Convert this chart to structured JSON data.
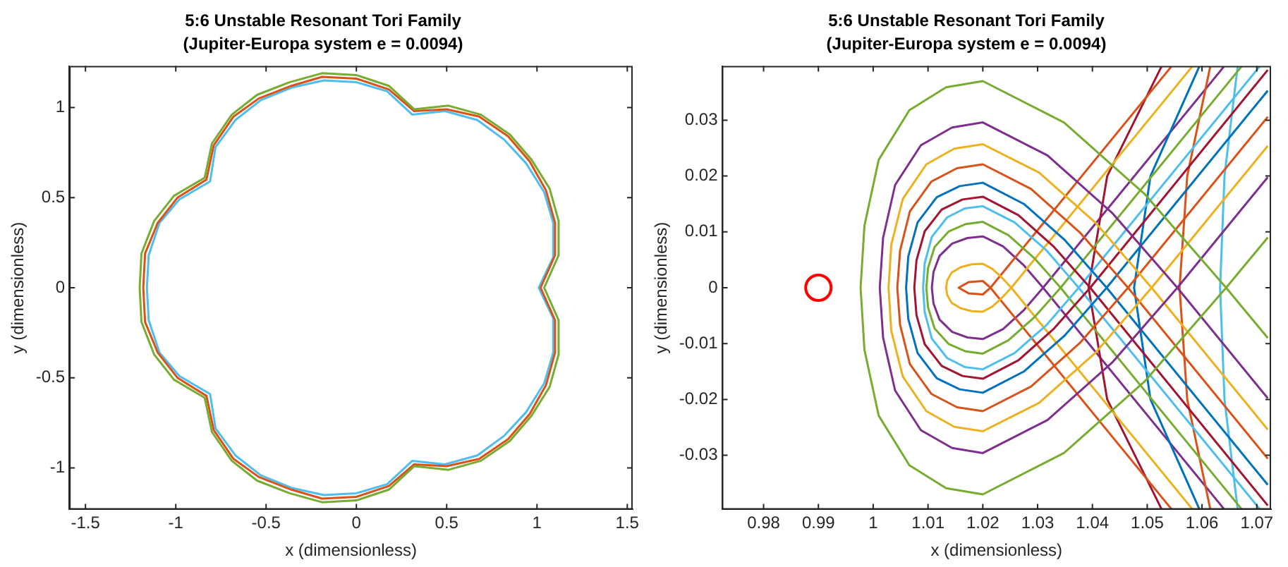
{
  "chart_data": [
    {
      "type": "line",
      "title": "5:6 Unstable Resonant Tori Family",
      "subtitle": "(Jupiter-Europa system e = 0.0094)",
      "xlabel": "x (dimensionless)",
      "ylabel": "y (dimensionless)",
      "xlim": [
        -1.59,
        1.53
      ],
      "ylim": [
        -1.23,
        1.23
      ],
      "xticks": [
        -1.5,
        -1,
        -0.5,
        0,
        0.5,
        1,
        1.5
      ],
      "yticks": [
        -1,
        -0.5,
        0,
        0.5,
        1
      ],
      "grid": false,
      "legend": false,
      "series": [
        {
          "color": "#77ac30",
          "x": [
            1.04,
            1.12,
            1.12,
            1.07,
            0.97,
            0.85,
            0.69,
            0.51,
            0.32,
            0.18,
            0,
            -0.19,
            -0.37,
            -0.55,
            -0.69,
            -0.8,
            -0.84,
            -1.01,
            -1.12,
            -1.19,
            -1.2,
            -1.19,
            -1.12,
            -1.01,
            -0.84,
            -0.8,
            -0.69,
            -0.55,
            -0.37,
            -0.19,
            0,
            0.18,
            0.32,
            0.51,
            0.69,
            0.85,
            0.97,
            1.07,
            1.12,
            1.12,
            1.04,
            1.08
          ],
          "values": [
            0,
            0.18,
            0.37,
            0.55,
            0.71,
            0.85,
            0.96,
            1.01,
            0.99,
            1.12,
            1.18,
            1.19,
            1.14,
            1.07,
            0.96,
            0.8,
            0.61,
            0.51,
            0.37,
            0.19,
            0,
            -0.19,
            -0.37,
            -0.51,
            -0.61,
            -0.8,
            -0.96,
            -1.07,
            -1.14,
            -1.19,
            -1.18,
            -1.12,
            -0.99,
            -1.01,
            -0.96,
            -0.85,
            -0.71,
            -0.55,
            -0.37,
            -0.18,
            0,
            0.09
          ]
        },
        {
          "color": "#d95319",
          "x": [
            1.02,
            1.1,
            1.1,
            1.05,
            0.96,
            0.84,
            0.68,
            0.5,
            0.32,
            0.18,
            0,
            -0.19,
            -0.36,
            -0.54,
            -0.68,
            -0.79,
            -0.83,
            -0.99,
            -1.1,
            -1.17,
            -1.18,
            -1.17,
            -1.1,
            -0.99,
            -0.83,
            -0.79,
            -0.68,
            -0.54,
            -0.36,
            -0.19,
            0,
            0.18,
            0.32,
            0.5,
            0.68,
            0.84,
            0.96,
            1.05,
            1.1,
            1.1,
            1.02,
            1.06
          ],
          "values": [
            0,
            0.18,
            0.36,
            0.54,
            0.7,
            0.84,
            0.95,
            0.99,
            0.98,
            1.1,
            1.16,
            1.17,
            1.12,
            1.05,
            0.95,
            0.79,
            0.6,
            0.5,
            0.36,
            0.19,
            0,
            -0.19,
            -0.36,
            -0.5,
            -0.6,
            -0.79,
            -0.95,
            -1.05,
            -1.12,
            -1.17,
            -1.16,
            -1.1,
            -0.98,
            -0.99,
            -0.95,
            -0.84,
            -0.7,
            -0.54,
            -0.36,
            -0.18,
            0,
            0.09
          ]
        },
        {
          "color": "#4dbeee",
          "x": [
            1.01,
            1.09,
            1.09,
            1.04,
            0.94,
            0.82,
            0.67,
            0.49,
            0.31,
            0.17,
            0,
            -0.18,
            -0.36,
            -0.53,
            -0.67,
            -0.78,
            -0.81,
            -0.98,
            -1.09,
            -1.15,
            -1.16,
            -1.15,
            -1.09,
            -0.98,
            -0.81,
            -0.78,
            -0.67,
            -0.53,
            -0.36,
            -0.18,
            0,
            0.17,
            0.31,
            0.49,
            0.67,
            0.82,
            0.94,
            1.04,
            1.09,
            1.09,
            1.01,
            1.05
          ],
          "values": [
            0,
            0.17,
            0.36,
            0.53,
            0.69,
            0.82,
            0.93,
            0.98,
            0.96,
            1.09,
            1.14,
            1.15,
            1.11,
            1.04,
            0.93,
            0.78,
            0.59,
            0.49,
            0.36,
            0.18,
            0,
            -0.18,
            -0.36,
            -0.49,
            -0.59,
            -0.78,
            -0.93,
            -1.04,
            -1.11,
            -1.15,
            -1.14,
            -1.09,
            -0.96,
            -0.98,
            -0.93,
            -0.82,
            -0.69,
            -0.53,
            -0.36,
            -0.17,
            0,
            0.085
          ]
        }
      ]
    },
    {
      "type": "line",
      "title": "5:6 Unstable Resonant Tori Family",
      "subtitle": "(Jupiter-Europa system e = 0.0094)",
      "xlabel": "x (dimensionless)",
      "ylabel": "y (dimensionless)",
      "xlim": [
        0.9724,
        1.0726
      ],
      "ylim": [
        -0.0397,
        0.0397
      ],
      "xticks": [
        0.98,
        0.99,
        1,
        1.01,
        1.02,
        1.03,
        1.04,
        1.05,
        1.06,
        1.07
      ],
      "yticks": [
        -0.03,
        -0.02,
        -0.01,
        0,
        0.01,
        0.02,
        0.03
      ],
      "grid": false,
      "legend": false,
      "series": [
        {
          "color": "#77ac30",
          "x": [
            1.072,
            1.0644,
            1.0496,
            1.0348,
            1.02,
            1.0133,
            1.0066,
            1.001,
            0.9984,
            0.9977,
            0.9984,
            1.001,
            1.0066,
            1.0133,
            1.02,
            1.0348,
            1.0496,
            1.0644,
            1.072
          ],
          "values": [
            0.009,
            0,
            -0.0167,
            -0.0296,
            -0.037,
            -0.0359,
            -0.0318,
            -0.0229,
            -0.0111,
            0,
            0.0111,
            0.0229,
            0.0318,
            0.0359,
            0.037,
            0.0296,
            0.0167,
            0,
            -0.009
          ]
        },
        {
          "color": "#7e2f8e",
          "x": [
            1.072,
            1.0555,
            1.0437,
            1.0318,
            1.02,
            1.0144,
            1.0087,
            1.004,
            1.0018,
            1.0012,
            1.0018,
            1.004,
            1.0087,
            1.0144,
            1.02,
            1.0318,
            1.0437,
            1.0555,
            1.072
          ],
          "values": [
            0.0198,
            0,
            -0.0133,
            -0.0237,
            -0.0296,
            -0.0287,
            -0.0255,
            -0.0184,
            -0.0089,
            0,
            0.0089,
            0.0184,
            0.0255,
            0.0287,
            0.0296,
            0.0237,
            0.0133,
            0,
            -0.0198
          ]
        },
        {
          "color": "#edb120",
          "x": [
            1.072,
            1.0508,
            1.0406,
            1.0303,
            1.02,
            1.0148,
            1.0097,
            1.0054,
            1.0033,
            1.0028,
            1.0033,
            1.0054,
            1.0097,
            1.0148,
            1.02,
            1.0303,
            1.0406,
            1.0508,
            1.072
          ],
          "values": [
            0.0254,
            0,
            -0.0116,
            -0.0206,
            -0.0257,
            -0.0249,
            -0.0221,
            -0.0159,
            -0.0077,
            0,
            0.0077,
            0.0159,
            0.0221,
            0.0249,
            0.0257,
            0.0206,
            0.0116,
            0,
            -0.0254
          ]
        },
        {
          "color": "#d95319",
          "x": [
            1.072,
            1.0465,
            1.0377,
            1.0288,
            1.02,
            1.0153,
            1.0106,
            1.0067,
            1.0049,
            1.0044,
            1.0049,
            1.0067,
            1.0106,
            1.0153,
            1.02,
            1.0288,
            1.0377,
            1.0465,
            1.072
          ],
          "values": [
            0.0306,
            0,
            -0.0099,
            -0.0177,
            -0.0221,
            -0.0214,
            -0.019,
            -0.0137,
            -0.0066,
            0,
            0.0066,
            0.0137,
            0.019,
            0.0214,
            0.0221,
            0.0177,
            0.0099,
            0,
            -0.0306
          ]
        },
        {
          "color": "#0072bd",
          "x": [
            1.072,
            1.0426,
            1.035,
            1.0275,
            1.02,
            1.0158,
            1.0116,
            1.0081,
            1.0064,
            1.006,
            1.0064,
            1.0081,
            1.0116,
            1.0158,
            1.02,
            1.0275,
            1.035,
            1.0426,
            1.072
          ],
          "values": [
            0.0353,
            0,
            -0.0085,
            -0.015,
            -0.0188,
            -0.0182,
            -0.0162,
            -0.0117,
            -0.0056,
            0,
            0.0056,
            0.0117,
            0.0162,
            0.0182,
            0.0188,
            0.015,
            0.0085,
            0,
            -0.0353
          ]
        },
        {
          "color": "#a2142f",
          "x": [
            1.072,
            1.0396,
            1.033,
            1.0265,
            1.02,
            1.0163,
            1.0125,
            1.0094,
            1.0079,
            1.0075,
            1.0079,
            1.0094,
            1.0125,
            1.0163,
            1.02,
            1.0265,
            1.033,
            1.0396,
            1.072
          ],
          "values": [
            0.039,
            0,
            -0.0073,
            -0.013,
            -0.0163,
            -0.0158,
            -0.014,
            -0.0101,
            -0.0049,
            0,
            0.0049,
            0.0101,
            0.014,
            0.0158,
            0.0163,
            0.013,
            0.0073,
            0,
            -0.039
          ]
        },
        {
          "color": "#4dbeee",
          "x": [
            1.0705,
            1.0375,
            1.0317,
            1.0258,
            1.02,
            1.0167,
            1.0135,
            1.0107,
            1.0094,
            1.0091,
            1.0094,
            1.0107,
            1.0135,
            1.0167,
            1.02,
            1.0258,
            1.0317,
            1.0375,
            1.0705
          ],
          "values": [
            0.0396,
            0,
            -0.0066,
            -0.0117,
            -0.0146,
            -0.0142,
            -0.0126,
            -0.0091,
            -0.0044,
            0,
            0.0044,
            0.0091,
            0.0126,
            0.0142,
            0.0146,
            0.0117,
            0.0066,
            0,
            -0.0396
          ]
        },
        {
          "color": "#77ac30",
          "x": [
            1.0672,
            1.0342,
            1.0294,
            1.0247,
            1.02,
            1.0169,
            1.0138,
            1.0112,
            1.01,
            1.0097,
            1.01,
            1.0112,
            1.0138,
            1.0169,
            1.02,
            1.0247,
            1.0294,
            1.0342,
            1.0672
          ],
          "values": [
            0.0396,
            0,
            -0.0053,
            -0.0094,
            -0.0118,
            -0.0114,
            -0.0101,
            -0.0073,
            -0.0035,
            0,
            0.0035,
            0.0073,
            0.0101,
            0.0114,
            0.0118,
            0.0094,
            0.0053,
            0,
            -0.0396
          ]
        },
        {
          "color": "#edb120",
          "x": [
            1.0582,
            1.0252,
            1.0234,
            1.0217,
            1.02,
            1.018,
            1.016,
            1.0143,
            1.0135,
            1.0133,
            1.0135,
            1.0143,
            1.016,
            1.018,
            1.02,
            1.0217,
            1.0234,
            1.0252,
            1.0582
          ],
          "values": [
            0.0396,
            0,
            -0.0019,
            -0.0034,
            -0.0043,
            -0.0042,
            -0.0037,
            -0.0027,
            -0.0013,
            0,
            0.0013,
            0.0027,
            0.0037,
            0.0042,
            0.0043,
            0.0034,
            0.0019,
            0,
            -0.0396
          ]
        },
        {
          "color": "#d95319",
          "x": [
            1.0544,
            1.0214,
            1.02,
            1.0174,
            1.0156,
            1.0174,
            1.02,
            1.0214,
            1.0544
          ],
          "values": [
            0.0396,
            0,
            -0.0012,
            -0.001,
            0,
            0.001,
            0.0012,
            0,
            -0.0396
          ]
        },
        {
          "color": "#a2142f",
          "x": [
            1.0526,
            1.0427,
            1.0393,
            1.0427,
            1.0526
          ],
          "values": [
            -0.0396,
            -0.02,
            0,
            0.02,
            0.0396
          ]
        },
        {
          "color": "#0072bd",
          "x": [
            1.0595,
            1.0506,
            1.0476,
            1.0506,
            1.0595
          ],
          "values": [
            -0.0396,
            -0.02,
            0,
            0.02,
            0.0396
          ]
        },
        {
          "color": "#d95319",
          "x": [
            1.0615,
            1.0573,
            1.0559,
            1.0573,
            1.0615
          ],
          "values": [
            -0.0396,
            -0.02,
            0,
            0.02,
            0.0396
          ]
        },
        {
          "color": "#4dbeee",
          "x": [
            1.0665,
            1.0641,
            1.0633,
            1.0641,
            1.0665
          ],
          "values": [
            -0.0396,
            -0.02,
            0,
            0.02,
            0.0396
          ]
        },
        {
          "color": "#7e2f8e",
          "x": [
            1.064,
            1.031,
            1.0274,
            1.0237,
            1.02,
            1.0172,
            1.0144,
            1.0121,
            1.011,
            1.0107,
            1.011,
            1.0121,
            1.0144,
            1.0172,
            1.02,
            1.0237,
            1.0274,
            1.031,
            1.064
          ],
          "values": [
            0.0396,
            0,
            -0.0041,
            -0.0074,
            -0.0092,
            -0.0089,
            -0.0079,
            -0.0057,
            -0.0028,
            0,
            0.0028,
            0.0057,
            0.0079,
            0.0089,
            0.0092,
            0.0074,
            0.0041,
            0,
            -0.0396
          ]
        },
        {
          "type": "scatter",
          "marker": "circle",
          "color": "#ff0000",
          "x": [
            0.99
          ],
          "values": [
            0
          ]
        }
      ]
    }
  ]
}
